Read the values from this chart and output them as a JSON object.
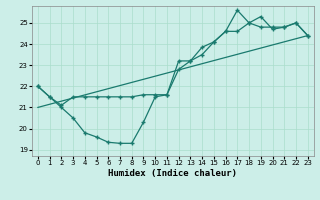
{
  "xlabel": "Humidex (Indice chaleur)",
  "bg_color": "#cceee8",
  "line_color": "#1a7a6e",
  "grid_color": "#aaddcc",
  "xlim": [
    -0.5,
    23.5
  ],
  "ylim": [
    18.7,
    25.8
  ],
  "xticks": [
    0,
    1,
    2,
    3,
    4,
    5,
    6,
    7,
    8,
    9,
    10,
    11,
    12,
    13,
    14,
    15,
    16,
    17,
    18,
    19,
    20,
    21,
    22,
    23
  ],
  "yticks": [
    19,
    20,
    21,
    22,
    23,
    24,
    25
  ],
  "line1_x": [
    0,
    1,
    2,
    3,
    4,
    5,
    6,
    7,
    8,
    9,
    10,
    11,
    12,
    13,
    14,
    15,
    16,
    17,
    18,
    19,
    20,
    21,
    22,
    23
  ],
  "line1_y": [
    22.0,
    21.5,
    21.0,
    20.5,
    19.8,
    19.6,
    19.35,
    19.3,
    19.3,
    20.3,
    21.5,
    21.6,
    23.2,
    23.2,
    23.85,
    24.1,
    24.6,
    25.6,
    25.0,
    25.3,
    24.7,
    24.8,
    25.0,
    24.4
  ],
  "line2_x": [
    0,
    1,
    2,
    3,
    4,
    5,
    6,
    7,
    8,
    9,
    10,
    11,
    12,
    13,
    14,
    15,
    16,
    17,
    18,
    19,
    20,
    21,
    22,
    23
  ],
  "line2_y": [
    22.0,
    21.5,
    21.1,
    21.5,
    21.5,
    21.5,
    21.5,
    21.5,
    21.5,
    21.6,
    21.6,
    21.6,
    22.8,
    23.2,
    23.5,
    24.1,
    24.6,
    24.6,
    25.0,
    24.8,
    24.8,
    24.8,
    25.0,
    24.4
  ],
  "line3_x": [
    0,
    23
  ],
  "line3_y": [
    21.0,
    24.4
  ]
}
